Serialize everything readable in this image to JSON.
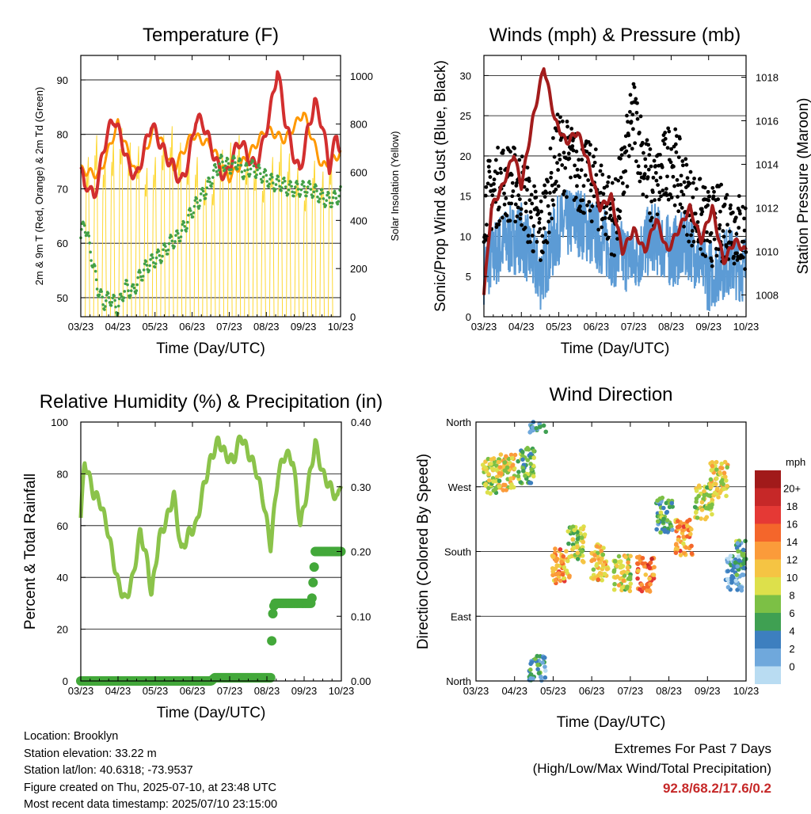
{
  "chart_data": [
    {
      "type": "line",
      "title": "Temperature (F)",
      "xlabel": "Time (Day/UTC)",
      "ylabel": "2m & 9m T (Red, Orange) & 2m Td (Green)",
      "y2label": "Solar Insolation (Yellow)",
      "categories": [
        "03/23",
        "04/23",
        "05/23",
        "06/23",
        "07/23",
        "08/23",
        "09/23",
        "10/23"
      ],
      "ylim": [
        46.5,
        94.5
      ],
      "y2lim": [
        0,
        1085
      ],
      "yticks": [
        50,
        60,
        70,
        80,
        90
      ],
      "y2ticks": [
        0,
        200,
        400,
        600,
        800,
        1000
      ],
      "grid": true,
      "series": [
        {
          "name": "2m T",
          "color": "#d32f2f",
          "x": [
            0,
            0.1,
            0.2,
            0.35,
            0.5,
            0.7,
            0.9,
            1.1,
            1.3,
            1.5,
            1.7,
            1.9,
            2.1,
            2.3,
            2.5,
            2.7,
            2.9,
            3.1,
            3.3,
            3.5,
            3.7,
            3.9,
            4.1,
            4.3,
            4.5,
            4.7,
            4.9,
            5.1,
            5.3,
            5.5,
            5.7,
            5.9,
            6.1,
            6.3,
            6.5,
            6.7,
            6.9,
            7.0
          ],
          "values": [
            74,
            70,
            71,
            68,
            73,
            80,
            83,
            79,
            74,
            72,
            77,
            82,
            79,
            76,
            74,
            71,
            75,
            83,
            82,
            78,
            74,
            72,
            76,
            79,
            76,
            74,
            78,
            84,
            92,
            83,
            77,
            73,
            80,
            86,
            82,
            74,
            80,
            77
          ]
        },
        {
          "name": "9m T",
          "color": "#ff9800",
          "x": [
            0,
            0.5,
            1.0,
            1.5,
            2.0,
            2.5,
            3.0,
            3.5,
            4.0,
            4.5,
            5.0,
            5.5,
            6.0,
            6.5,
            7.0
          ],
          "values": [
            73.5,
            72.5,
            82,
            72.5,
            81.5,
            73.5,
            80,
            78,
            72,
            76,
            81,
            79,
            84,
            74,
            76.5
          ]
        },
        {
          "name": "2m Td",
          "color": "#43a047",
          "x": [
            0,
            0.1,
            0.25,
            0.45,
            0.6,
            0.8,
            1.0,
            1.2,
            1.4,
            1.6,
            1.8,
            2.0,
            2.2,
            2.4,
            2.6,
            2.8,
            3.0,
            3.2,
            3.4,
            3.6,
            3.8,
            4.0,
            4.2,
            4.4,
            4.6,
            4.8,
            5.0,
            5.2,
            5.4,
            5.6,
            5.8,
            6.0,
            6.2,
            6.4,
            6.6,
            6.8,
            7.0
          ],
          "values": [
            61,
            64,
            59,
            52,
            49,
            50,
            48,
            52,
            51,
            54,
            56,
            57,
            58,
            60,
            61,
            63,
            66,
            68,
            70,
            73,
            75,
            74,
            75,
            73,
            74,
            73,
            72,
            71,
            71,
            70,
            70,
            70,
            70,
            69,
            68,
            68,
            69
          ]
        },
        {
          "name": "Solar Insolation",
          "color": "#fdd835",
          "axis": "right",
          "values": "diurnal, peaks 900-1050"
        }
      ]
    },
    {
      "type": "line",
      "title": "Winds (mph) & Pressure (mb)",
      "xlabel": "Time (Day/UTC)",
      "ylabel": "Sonic/Prop Wind & Gust (Blue, Black)",
      "y2label": "Station Pressure (Maroon)",
      "categories": [
        "03/23",
        "04/23",
        "05/23",
        "06/23",
        "07/23",
        "08/23",
        "09/23",
        "10/23"
      ],
      "ylim": [
        0,
        32.5
      ],
      "y2lim": [
        1007.0,
        1019.0
      ],
      "yticks": [
        0,
        5,
        10,
        15,
        20,
        25,
        30
      ],
      "y2ticks": [
        1008,
        1010,
        1012,
        1014,
        1016,
        1018
      ],
      "grid": true,
      "series": [
        {
          "name": "Wind",
          "color": "#5c9bd5",
          "x": [
            0,
            0.5,
            1.0,
            1.5,
            2.0,
            2.5,
            3.0,
            3.5,
            4.0,
            4.5,
            5.0,
            5.5,
            6.0,
            6.5,
            7.0
          ],
          "values": [
            6,
            9,
            10,
            5,
            11,
            12,
            10,
            8,
            7,
            10,
            8,
            9,
            5,
            7,
            6
          ]
        },
        {
          "name": "Gust",
          "color": "#000000",
          "x": [
            0,
            0.5,
            1.0,
            1.5,
            2.0,
            2.5,
            3.0,
            3.5,
            4.0,
            4.5,
            5.0,
            5.5,
            6.0,
            6.5,
            7.0
          ],
          "values": [
            14,
            17,
            16,
            10,
            21,
            18,
            16,
            12,
            25,
            15,
            20,
            14,
            11,
            12,
            10
          ]
        },
        {
          "name": "Pressure",
          "color": "#a31c1c",
          "axis": "right",
          "x": [
            0,
            0.2,
            0.5,
            0.8,
            1.0,
            1.3,
            1.6,
            1.9,
            2.2,
            2.5,
            2.8,
            3.1,
            3.4,
            3.7,
            4.0,
            4.3,
            4.6,
            4.9,
            5.2,
            5.5,
            5.8,
            6.1,
            6.4,
            6.7,
            7.0
          ],
          "values": [
            1008,
            1012,
            1013,
            1014.5,
            1013,
            1016,
            1018.5,
            1016,
            1015,
            1015.5,
            1014,
            1012,
            1012.5,
            1010,
            1011,
            1010,
            1011.5,
            1010,
            1011,
            1012,
            1010.5,
            1012,
            1009.5,
            1010.5,
            1010
          ]
        }
      ]
    },
    {
      "type": "line",
      "title": "Relative Humidity (%) & Precipitation (in)",
      "xlabel": "Time (Day/UTC)",
      "ylabel": "Percent & Total Rainfall",
      "categories": [
        "03/23",
        "04/23",
        "05/23",
        "06/23",
        "07/23",
        "08/23",
        "09/23",
        "10/23"
      ],
      "ylim": [
        0,
        100
      ],
      "y2lim": [
        0,
        0.4
      ],
      "yticks": [
        0,
        20,
        40,
        60,
        80,
        100
      ],
      "y2ticks": [
        "0.00",
        "0.10",
        "0.20",
        "0.30",
        "0.40"
      ],
      "grid": true,
      "series": [
        {
          "name": "Relative Humidity",
          "color": "#8bc34a",
          "x": [
            0,
            0.1,
            0.2,
            0.35,
            0.5,
            0.7,
            0.9,
            1.0,
            1.2,
            1.4,
            1.6,
            1.8,
            1.9,
            2.1,
            2.3,
            2.5,
            2.7,
            2.9,
            3.1,
            3.3,
            3.5,
            3.7,
            3.9,
            4.1,
            4.3,
            4.5,
            4.7,
            4.9,
            5.1,
            5.3,
            5.5,
            5.7,
            5.9,
            6.1,
            6.3,
            6.5,
            6.7,
            6.9,
            7.0
          ],
          "values": [
            63,
            85,
            80,
            72,
            70,
            60,
            45,
            38,
            31,
            40,
            58,
            45,
            33,
            55,
            62,
            72,
            50,
            57,
            60,
            75,
            86,
            93,
            87,
            85,
            95,
            88,
            82,
            70,
            52,
            80,
            88,
            85,
            60,
            75,
            92,
            80,
            75,
            70,
            78
          ]
        },
        {
          "name": "Precipitation",
          "color": "#43a83a",
          "axis": "right",
          "x": [
            0,
            3.5,
            3.6,
            5.1,
            5.15,
            5.2,
            6.2,
            6.25,
            6.3,
            7.0
          ],
          "values": [
            0,
            0,
            0.005,
            0.005,
            0.1,
            0.12,
            0.12,
            0.16,
            0.2,
            0.2
          ]
        }
      ]
    },
    {
      "type": "scatter",
      "title": "Wind Direction",
      "xlabel": "Time (Day/UTC)",
      "ylabel": "Direction (Colored By Speed)",
      "categories": [
        "03/23",
        "04/23",
        "05/23",
        "06/23",
        "07/23",
        "08/23",
        "09/23",
        "10/23"
      ],
      "yticks": [
        "North",
        "East",
        "South",
        "West",
        "North"
      ],
      "ylim": [
        0,
        360
      ],
      "colorbar": {
        "title": "mph",
        "labels": [
          "20+",
          "18",
          "16",
          "14",
          "12",
          "10",
          "8",
          "6",
          "4",
          "2",
          "0"
        ],
        "colors": [
          "#a11a1a",
          "#c62828",
          "#e53935",
          "#f4662b",
          "#fb9b3a",
          "#f5c443",
          "#dde04b",
          "#7cc045",
          "#3fa052",
          "#3d7fbf",
          "#6fa8dc",
          "#b9dcf2"
        ]
      },
      "clusters": [
        {
          "x": 0.4,
          "dir": 285,
          "speed": 9
        },
        {
          "x": 0.8,
          "dir": 290,
          "speed": 11
        },
        {
          "x": 1.3,
          "dir": 300,
          "speed": 7
        },
        {
          "x": 1.6,
          "dir": 10,
          "speed": 4
        },
        {
          "x": 2.2,
          "dir": 160,
          "speed": 14
        },
        {
          "x": 2.6,
          "dir": 190,
          "speed": 9
        },
        {
          "x": 3.2,
          "dir": 165,
          "speed": 12
        },
        {
          "x": 3.8,
          "dir": 150,
          "speed": 10
        },
        {
          "x": 4.4,
          "dir": 148,
          "speed": 16
        },
        {
          "x": 4.9,
          "dir": 230,
          "speed": 6
        },
        {
          "x": 5.4,
          "dir": 200,
          "speed": 14
        },
        {
          "x": 5.9,
          "dir": 250,
          "speed": 9
        },
        {
          "x": 6.3,
          "dir": 280,
          "speed": 11
        },
        {
          "x": 6.7,
          "dir": 150,
          "speed": 3
        },
        {
          "x": 6.9,
          "dir": 170,
          "speed": 6
        }
      ]
    }
  ],
  "station": {
    "location": "Location: Brooklyn",
    "elevation": "Station elevation: 33.22 m",
    "latlon": "Station lat/lon: 40.6318; -73.9537",
    "created": "Figure created on Thu, 2025-07-10, at 23:48 UTC",
    "recent": "Most recent data timestamp: 2025/07/10 23:15:00"
  },
  "extremes": {
    "title": "Extremes For Past 7 Days",
    "subtitle": "(High/Low/Max Wind/Total Precipitation)",
    "values": "92.8/68.2/17.6/0.2",
    "color": "#c62828"
  }
}
